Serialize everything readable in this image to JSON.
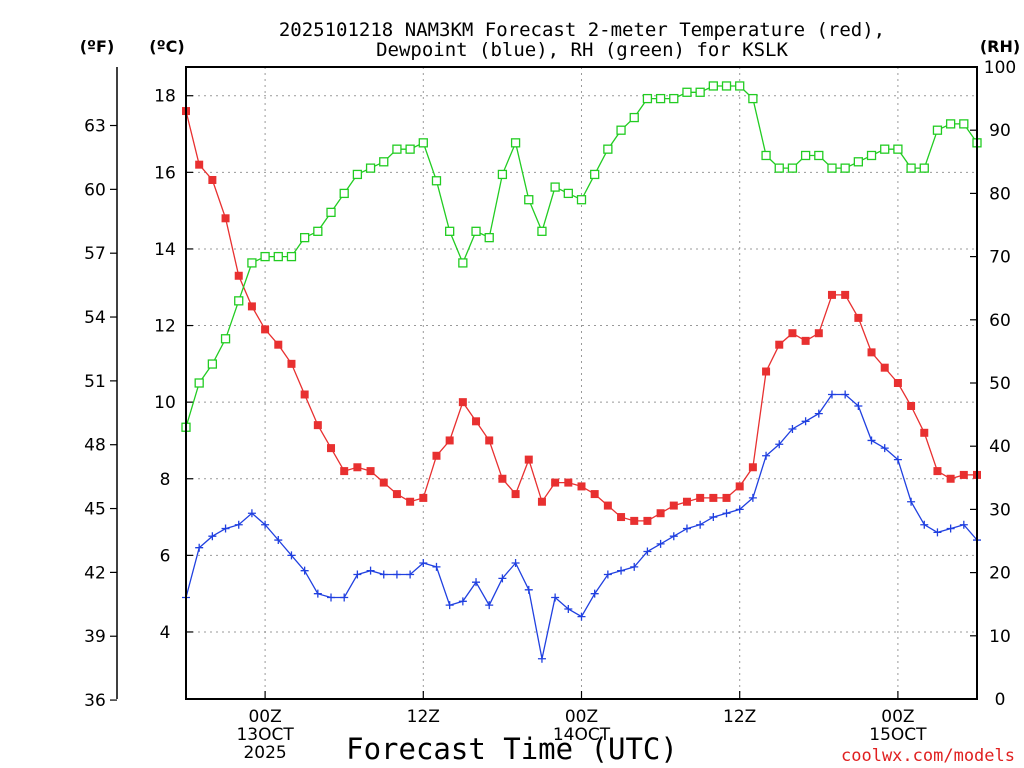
{
  "chart_data": {
    "type": "line",
    "title_line1": "2025101218 NAM3KM Forecast 2-meter Temperature (red),",
    "title_line2": "Dewpoint (blue), RH (green) for KSLK",
    "xlabel": "Forecast Time (UTC)",
    "credit": "coolwx.com/models",
    "units": {
      "fahrenheit": "(ºF)",
      "celsius": "(ºC)",
      "rh": "(RH)"
    },
    "y_celsius": {
      "min": 2.25,
      "max": 18.75,
      "ticks": [
        "4",
        "6",
        "8",
        "10",
        "12",
        "14",
        "16",
        "18"
      ]
    },
    "y_fahrenheit": {
      "ticks": [
        "36",
        "39",
        "42",
        "45",
        "48",
        "51",
        "54",
        "57",
        "60",
        "63"
      ]
    },
    "y_rh": {
      "min": 0,
      "max": 100,
      "ticks": [
        "0",
        "10",
        "20",
        "30",
        "40",
        "50",
        "60",
        "70",
        "80",
        "90",
        "100"
      ]
    },
    "x_range": [
      0,
      60
    ],
    "x_ticks": [
      {
        "hour": 6,
        "lines": [
          "00Z",
          "13OCT",
          "2025"
        ]
      },
      {
        "hour": 18,
        "lines": [
          "12Z"
        ]
      },
      {
        "hour": 30,
        "lines": [
          "00Z",
          "14OCT"
        ]
      },
      {
        "hour": 42,
        "lines": [
          "12Z"
        ]
      },
      {
        "hour": 54,
        "lines": [
          "00Z",
          "15OCT"
        ]
      }
    ],
    "series": [
      {
        "name": "2-meter Temperature",
        "unit": "C",
        "color": "#e83030",
        "marker": "filled-square",
        "values": [
          17.6,
          16.2,
          15.8,
          14.8,
          13.3,
          12.5,
          11.9,
          11.5,
          11.0,
          10.2,
          9.4,
          8.8,
          8.2,
          8.3,
          8.2,
          7.9,
          7.6,
          7.4,
          7.5,
          8.6,
          9.0,
          10.0,
          9.5,
          9.0,
          8.0,
          7.6,
          8.5,
          7.4,
          7.9,
          7.9,
          7.8,
          7.6,
          7.3,
          7.0,
          6.9,
          6.9,
          7.1,
          7.3,
          7.4,
          7.5,
          7.5,
          7.5,
          7.8,
          8.3,
          10.8,
          11.5,
          11.8,
          11.6,
          11.8,
          12.8,
          12.8,
          12.2,
          11.3,
          10.9,
          10.5,
          9.9,
          9.2,
          8.2,
          8.0,
          8.1,
          8.1
        ]
      },
      {
        "name": "Dewpoint",
        "unit": "C",
        "color": "#2040e0",
        "marker": "plus",
        "values": [
          4.9,
          6.2,
          6.5,
          6.7,
          6.8,
          7.1,
          6.8,
          6.4,
          6.0,
          5.6,
          5.0,
          4.9,
          4.9,
          5.5,
          5.6,
          5.5,
          5.5,
          5.5,
          5.8,
          5.7,
          4.7,
          4.8,
          5.3,
          4.7,
          5.4,
          5.8,
          5.1,
          3.3,
          4.9,
          4.6,
          4.4,
          5.0,
          5.5,
          5.6,
          5.7,
          6.1,
          6.3,
          6.5,
          6.7,
          6.8,
          7.0,
          7.1,
          7.2,
          7.5,
          8.6,
          8.9,
          9.3,
          9.5,
          9.7,
          10.2,
          10.2,
          9.9,
          9.0,
          8.8,
          8.5,
          7.4,
          6.8,
          6.6,
          6.7,
          6.8,
          6.4
        ]
      },
      {
        "name": "Relative Humidity",
        "unit": "%",
        "color": "#22cc22",
        "marker": "open-square",
        "values": [
          43,
          50,
          53,
          57,
          63,
          69,
          70,
          70,
          70,
          73,
          74,
          77,
          80,
          83,
          84,
          85,
          87,
          87,
          88,
          82,
          74,
          69,
          74,
          73,
          83,
          88,
          79,
          74,
          81,
          80,
          79,
          83,
          87,
          90,
          92,
          95,
          95,
          95,
          96,
          96,
          97,
          97,
          97,
          95,
          86,
          84,
          84,
          86,
          86,
          84,
          84,
          85,
          86,
          87,
          87,
          84,
          84,
          90,
          91,
          91,
          88
        ]
      }
    ]
  }
}
